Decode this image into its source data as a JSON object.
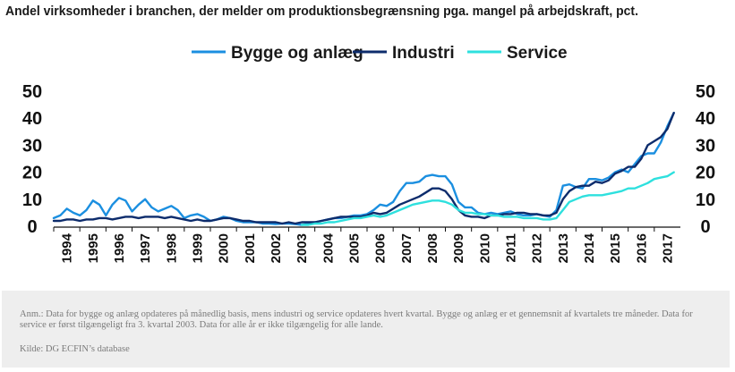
{
  "chart_data": {
    "type": "line",
    "title": "Andel virksomheder i branchen, der melder om produktionsbegrænsning pga. mangel på arbejdskraft, pct.",
    "xlabel": "",
    "ylabel": "",
    "ylim": [
      0,
      50
    ],
    "yticks": [
      "0",
      "10",
      "20",
      "30",
      "40",
      "50"
    ],
    "xlim": [
      1994,
      2018
    ],
    "x_tick_labels": [
      "1994",
      "1995",
      "1996",
      "1997",
      "1998",
      "1999",
      "2000",
      "2001",
      "2002",
      "2003",
      "2004",
      "2005",
      "2006",
      "2007",
      "2008",
      "2009",
      "2010",
      "2011",
      "2012",
      "2013",
      "2014",
      "2015",
      "2016",
      "2017"
    ],
    "grid": false,
    "legend_position": "top",
    "series": [
      {
        "name": "Bygge og anlæg",
        "color": "#1b8fe0",
        "points": [
          [
            1994.0,
            3
          ],
          [
            1994.25,
            4
          ],
          [
            1994.5,
            6.5
          ],
          [
            1994.75,
            5
          ],
          [
            1995.0,
            4
          ],
          [
            1995.25,
            6
          ],
          [
            1995.5,
            9.5
          ],
          [
            1995.75,
            8
          ],
          [
            1996.0,
            4
          ],
          [
            1996.25,
            8
          ],
          [
            1996.5,
            10.5
          ],
          [
            1996.75,
            9.5
          ],
          [
            1997.0,
            5.5
          ],
          [
            1997.25,
            8
          ],
          [
            1997.5,
            10
          ],
          [
            1997.75,
            7
          ],
          [
            1998.0,
            5.5
          ],
          [
            1998.25,
            6.5
          ],
          [
            1998.5,
            7.5
          ],
          [
            1998.75,
            6
          ],
          [
            1999.0,
            3
          ],
          [
            1999.25,
            4
          ],
          [
            1999.5,
            4.5
          ],
          [
            1999.75,
            3.5
          ],
          [
            2000.0,
            2
          ],
          [
            2000.25,
            2.5
          ],
          [
            2000.5,
            3.5
          ],
          [
            2000.75,
            3
          ],
          [
            2001.0,
            2
          ],
          [
            2001.25,
            1.5
          ],
          [
            2001.5,
            1.5
          ],
          [
            2001.75,
            1.5
          ],
          [
            2002.0,
            1
          ],
          [
            2002.25,
            1
          ],
          [
            2002.5,
            0.8
          ],
          [
            2002.75,
            1
          ],
          [
            2003.0,
            1
          ],
          [
            2003.25,
            0.8
          ],
          [
            2003.5,
            0.5
          ],
          [
            2003.75,
            1
          ],
          [
            2004.0,
            1.5
          ],
          [
            2004.25,
            2
          ],
          [
            2004.5,
            2.5
          ],
          [
            2004.75,
            3
          ],
          [
            2005.0,
            3
          ],
          [
            2005.25,
            3.5
          ],
          [
            2005.5,
            4
          ],
          [
            2005.75,
            4
          ],
          [
            2006.0,
            4.5
          ],
          [
            2006.25,
            6
          ],
          [
            2006.5,
            8
          ],
          [
            2006.75,
            7.5
          ],
          [
            2007.0,
            9
          ],
          [
            2007.25,
            13
          ],
          [
            2007.5,
            16
          ],
          [
            2007.75,
            16
          ],
          [
            2008.0,
            16.5
          ],
          [
            2008.25,
            18.5
          ],
          [
            2008.5,
            19
          ],
          [
            2008.75,
            18.5
          ],
          [
            2009.0,
            18.5
          ],
          [
            2009.25,
            15.5
          ],
          [
            2009.5,
            9
          ],
          [
            2009.75,
            7
          ],
          [
            2010.0,
            7
          ],
          [
            2010.25,
            5
          ],
          [
            2010.5,
            4.5
          ],
          [
            2010.75,
            5
          ],
          [
            2011.0,
            4.5
          ],
          [
            2011.25,
            5
          ],
          [
            2011.5,
            5.5
          ],
          [
            2011.75,
            4.5
          ],
          [
            2012.0,
            4
          ],
          [
            2012.25,
            4
          ],
          [
            2012.5,
            4.5
          ],
          [
            2012.75,
            4
          ],
          [
            2013.0,
            3.5
          ],
          [
            2013.25,
            6
          ],
          [
            2013.5,
            15
          ],
          [
            2013.75,
            15.5
          ],
          [
            2014.0,
            14.5
          ],
          [
            2014.25,
            14
          ],
          [
            2014.5,
            17.5
          ],
          [
            2014.75,
            17.5
          ],
          [
            2015.0,
            17
          ],
          [
            2015.25,
            18
          ],
          [
            2015.5,
            20
          ],
          [
            2015.75,
            21
          ],
          [
            2016.0,
            20
          ],
          [
            2016.25,
            23
          ],
          [
            2016.5,
            26
          ],
          [
            2016.75,
            27
          ],
          [
            2017.0,
            27
          ],
          [
            2017.25,
            31
          ],
          [
            2017.5,
            37
          ],
          [
            2017.75,
            42
          ]
        ]
      },
      {
        "name": "Industri",
        "color": "#0d2c6c",
        "points": [
          [
            1994.0,
            2
          ],
          [
            1994.25,
            2
          ],
          [
            1994.5,
            2.5
          ],
          [
            1994.75,
            2.5
          ],
          [
            1995.0,
            2
          ],
          [
            1995.25,
            2.5
          ],
          [
            1995.5,
            2.5
          ],
          [
            1995.75,
            3
          ],
          [
            1996.0,
            3
          ],
          [
            1996.25,
            2.5
          ],
          [
            1996.5,
            3
          ],
          [
            1996.75,
            3.5
          ],
          [
            1997.0,
            3.5
          ],
          [
            1997.25,
            3
          ],
          [
            1997.5,
            3.5
          ],
          [
            1997.75,
            3.5
          ],
          [
            1998.0,
            3.5
          ],
          [
            1998.25,
            3
          ],
          [
            1998.5,
            3.5
          ],
          [
            1998.75,
            3
          ],
          [
            1999.0,
            2.5
          ],
          [
            1999.25,
            2
          ],
          [
            1999.5,
            2.5
          ],
          [
            1999.75,
            2
          ],
          [
            2000.0,
            2
          ],
          [
            2000.25,
            2.5
          ],
          [
            2000.5,
            3
          ],
          [
            2000.75,
            3
          ],
          [
            2001.0,
            2.5
          ],
          [
            2001.25,
            2
          ],
          [
            2001.5,
            2
          ],
          [
            2001.75,
            1.5
          ],
          [
            2002.0,
            1.5
          ],
          [
            2002.25,
            1.5
          ],
          [
            2002.5,
            1.5
          ],
          [
            2002.75,
            1
          ],
          [
            2003.0,
            1.5
          ],
          [
            2003.25,
            1
          ],
          [
            2003.5,
            1.5
          ],
          [
            2003.75,
            1.5
          ],
          [
            2004.0,
            1.5
          ],
          [
            2004.25,
            2
          ],
          [
            2004.5,
            2.5
          ],
          [
            2004.75,
            3
          ],
          [
            2005.0,
            3.5
          ],
          [
            2005.25,
            3.5
          ],
          [
            2005.5,
            3.5
          ],
          [
            2005.75,
            3.5
          ],
          [
            2006.0,
            4
          ],
          [
            2006.25,
            5
          ],
          [
            2006.5,
            4.5
          ],
          [
            2006.75,
            5
          ],
          [
            2007.0,
            6.5
          ],
          [
            2007.25,
            8
          ],
          [
            2007.5,
            9
          ],
          [
            2007.75,
            10
          ],
          [
            2008.0,
            11
          ],
          [
            2008.25,
            12.5
          ],
          [
            2008.5,
            14
          ],
          [
            2008.75,
            14
          ],
          [
            2009.0,
            13
          ],
          [
            2009.25,
            10
          ],
          [
            2009.5,
            6
          ],
          [
            2009.75,
            4
          ],
          [
            2010.0,
            3.5
          ],
          [
            2010.25,
            3.5
          ],
          [
            2010.5,
            3
          ],
          [
            2010.75,
            4
          ],
          [
            2011.0,
            4
          ],
          [
            2011.25,
            4.5
          ],
          [
            2011.5,
            4.5
          ],
          [
            2011.75,
            5
          ],
          [
            2012.0,
            5
          ],
          [
            2012.25,
            4.5
          ],
          [
            2012.5,
            4.5
          ],
          [
            2012.75,
            4
          ],
          [
            2013.0,
            4
          ],
          [
            2013.25,
            5
          ],
          [
            2013.5,
            10
          ],
          [
            2013.75,
            13
          ],
          [
            2014.0,
            14.5
          ],
          [
            2014.25,
            15
          ],
          [
            2014.5,
            15
          ],
          [
            2014.75,
            16.5
          ],
          [
            2015.0,
            16
          ],
          [
            2015.25,
            17
          ],
          [
            2015.5,
            19.5
          ],
          [
            2015.75,
            20.5
          ],
          [
            2016.0,
            22
          ],
          [
            2016.25,
            22
          ],
          [
            2016.5,
            25
          ],
          [
            2016.75,
            30
          ],
          [
            2017.0,
            31.5
          ],
          [
            2017.25,
            33
          ],
          [
            2017.5,
            36
          ],
          [
            2017.75,
            42
          ]
        ]
      },
      {
        "name": "Service",
        "color": "#2ee0de",
        "points": [
          [
            2003.5,
            0.5
          ],
          [
            2003.75,
            0.5
          ],
          [
            2004.0,
            1
          ],
          [
            2004.25,
            1
          ],
          [
            2004.5,
            1.5
          ],
          [
            2004.75,
            1.5
          ],
          [
            2005.0,
            2
          ],
          [
            2005.25,
            2.5
          ],
          [
            2005.5,
            3
          ],
          [
            2005.75,
            3
          ],
          [
            2006.0,
            3.5
          ],
          [
            2006.25,
            4
          ],
          [
            2006.5,
            3.5
          ],
          [
            2006.75,
            4
          ],
          [
            2007.0,
            5
          ],
          [
            2007.25,
            6
          ],
          [
            2007.5,
            7
          ],
          [
            2007.75,
            8
          ],
          [
            2008.0,
            8.5
          ],
          [
            2008.25,
            9
          ],
          [
            2008.5,
            9.5
          ],
          [
            2008.75,
            9.5
          ],
          [
            2009.0,
            9
          ],
          [
            2009.25,
            8
          ],
          [
            2009.5,
            6
          ],
          [
            2009.75,
            5
          ],
          [
            2010.0,
            5
          ],
          [
            2010.25,
            4.5
          ],
          [
            2010.5,
            4.5
          ],
          [
            2010.75,
            4
          ],
          [
            2011.0,
            4
          ],
          [
            2011.25,
            3.5
          ],
          [
            2011.5,
            3.5
          ],
          [
            2011.75,
            3.5
          ],
          [
            2012.0,
            3
          ],
          [
            2012.25,
            3
          ],
          [
            2012.5,
            3
          ],
          [
            2012.75,
            2.5
          ],
          [
            2013.0,
            2.5
          ],
          [
            2013.25,
            3
          ],
          [
            2013.5,
            6
          ],
          [
            2013.75,
            9
          ],
          [
            2014.0,
            10
          ],
          [
            2014.25,
            11
          ],
          [
            2014.5,
            11.5
          ],
          [
            2014.75,
            11.5
          ],
          [
            2015.0,
            11.5
          ],
          [
            2015.25,
            12
          ],
          [
            2015.5,
            12.5
          ],
          [
            2015.75,
            13
          ],
          [
            2016.0,
            14
          ],
          [
            2016.25,
            14
          ],
          [
            2016.5,
            15
          ],
          [
            2016.75,
            16
          ],
          [
            2017.0,
            17.5
          ],
          [
            2017.25,
            18
          ],
          [
            2017.5,
            18.5
          ],
          [
            2017.75,
            20
          ]
        ]
      }
    ],
    "note": "Anm.: Data for bygge og anlæg opdateres på månedlig basis, mens industri og service opdateres hvert kvartal. Bygge og anlæg er et gennemsnit af kvartalets tre måneder. Data for service er først tilgængeligt fra 3. kvartal 2003. Data for alle år er ikke tilgængelig for alle lande.",
    "source": "Kilde: DG ECFIN’s database"
  }
}
